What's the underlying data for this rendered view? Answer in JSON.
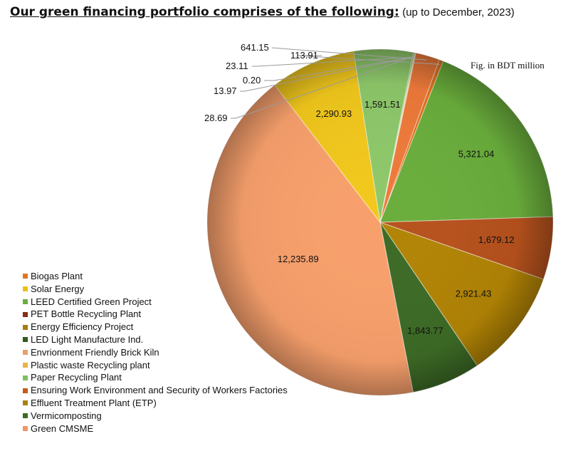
{
  "heading": {
    "title": "Our green financing portfolio comprises of the following:",
    "subtitle": "(up to December, 2023)"
  },
  "chart_data": {
    "type": "pie",
    "unit_note": "Fig. in BDT million",
    "slices": [
      {
        "name": "Biogas Plant",
        "value": 113.91,
        "label": "113.91",
        "color": "#e2761f"
      },
      {
        "name": "Solar Energy",
        "value": 0,
        "label": "",
        "color": "#e8c218"
      },
      {
        "name": "LEED Certified Green Project",
        "value": 5321.04,
        "label": "5,321.04",
        "color": "#6aae3c"
      },
      {
        "name": "PET Bottle Recycling Plant",
        "value": 1679.12,
        "label": "1,679.12",
        "color": "#b7521d"
      },
      {
        "name": "Energy Efficiency Project",
        "value": 0,
        "label": "",
        "color": "#a87a10"
      },
      {
        "name": "LED Light Manufacture Ind.",
        "value": 0,
        "label": "",
        "color": "#3e6a25"
      },
      {
        "name": "Envrionment Friendly Brick Kiln",
        "value": 0,
        "label": "",
        "color": "#f09466"
      },
      {
        "name": "Plastic waste Recycling plant",
        "value": 0,
        "label": "",
        "color": "#e6b64a"
      },
      {
        "name": "Paper Recycling Plant",
        "value": 0,
        "label": "",
        "color": "#86c267"
      },
      {
        "name": "Ensuring Work Environment and Security of Workers Factories",
        "value": 0,
        "label": "",
        "color": "#c55a1a"
      },
      {
        "name": "Effluent Treatment Plant (ETP)",
        "value": 2921.43,
        "label": "2,921.43",
        "color": "#b28405"
      },
      {
        "name": "Vermicomposting",
        "value": 1843.77,
        "label": "1,843.77",
        "color": "#3d6b26"
      },
      {
        "name": "Green CMSME",
        "value": 12235.89,
        "label": "12,235.89",
        "color": "#f8a06c"
      },
      {
        "name": "Solar Energy",
        "value": 2290.93,
        "label": "2,290.93",
        "color": "#f2c81c"
      },
      {
        "name": "Paper Recycling Plant",
        "value": 1591.51,
        "label": "1,591.51",
        "color": "#8ec86a"
      },
      {
        "name": "",
        "value": 28.69,
        "label": "28.69",
        "color": "#6aae3c"
      },
      {
        "name": "",
        "value": 13.97,
        "label": "13.97",
        "color": "#b7521d"
      },
      {
        "name": "",
        "value": 0.2,
        "label": "0.20",
        "color": "#a87a10"
      },
      {
        "name": "",
        "value": 23.11,
        "label": "23.11",
        "color": "#e6b64a"
      },
      {
        "name": "",
        "value": 641.15,
        "label": "641.15",
        "color": "#ee7a3a"
      }
    ],
    "legend": [
      {
        "name": "Biogas Plant",
        "color": "#e2761f"
      },
      {
        "name": "Solar Energy",
        "color": "#e8c218"
      },
      {
        "name": "LEED Certified Green Project",
        "color": "#6aae3c"
      },
      {
        "name": "PET Bottle Recycling Plant",
        "color": "#8a2e12"
      },
      {
        "name": "Energy Efficiency Project",
        "color": "#a87a10"
      },
      {
        "name": "LED Light Manufacture Ind.",
        "color": "#2f5a1c"
      },
      {
        "name": "Envrionment Friendly Brick Kiln",
        "color": "#e8a070"
      },
      {
        "name": "Plastic waste Recycling plant",
        "color": "#e6b64a"
      },
      {
        "name": "Paper Recycling Plant",
        "color": "#7fbf5f"
      },
      {
        "name": "Ensuring Work Environment and Security of Workers Factories",
        "color": "#c55a1a"
      },
      {
        "name": "Effluent Treatment Plant (ETP)",
        "color": "#a8820e"
      },
      {
        "name": "Vermicomposting",
        "color": "#3d6b26"
      },
      {
        "name": "Green CMSME",
        "color": "#f0956a"
      }
    ],
    "legend_position": "bottom-left"
  }
}
